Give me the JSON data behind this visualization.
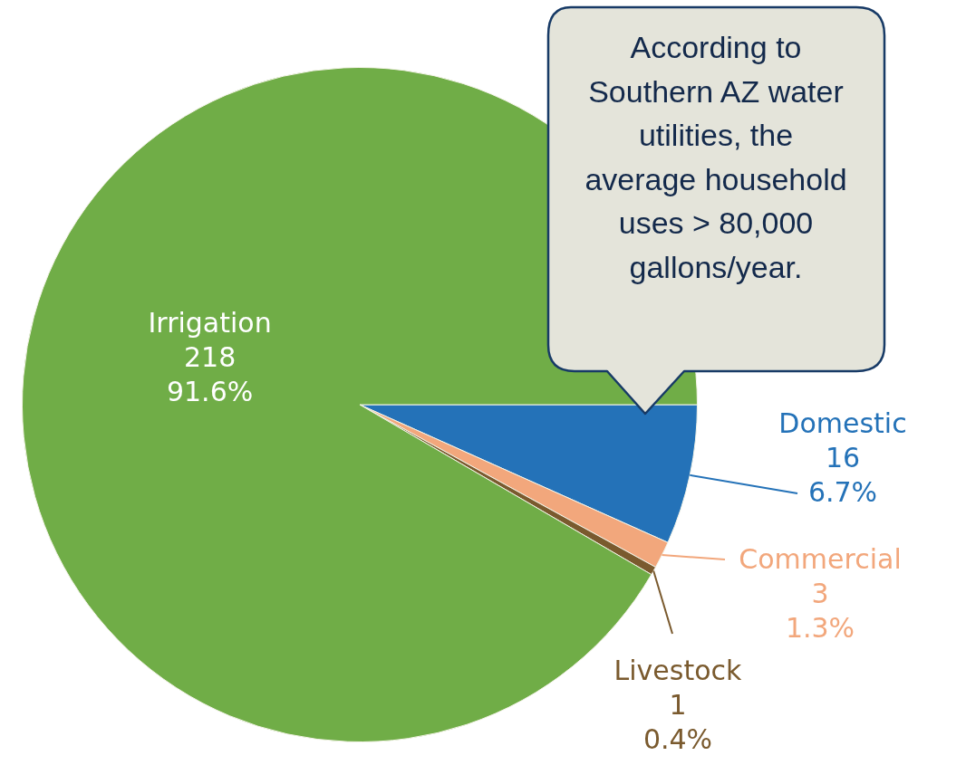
{
  "chart_data": {
    "type": "pie",
    "categories": [
      "Domestic",
      "Commercial",
      "Livestock",
      "Irrigation"
    ],
    "values": [
      6.7,
      1.3,
      0.4,
      91.6
    ],
    "colors": [
      "#2472b8",
      "#f2a77c",
      "#7a5a2e",
      "#70ad47"
    ],
    "value_labels": [
      "16\n6.7%",
      "3\n1.3%",
      "1\n0.4%",
      "218\n91.6%"
    ],
    "annotations": [
      "According to Southern AZ water utilities, the average household uses > 80,000 gallons/year."
    ]
  }
}
